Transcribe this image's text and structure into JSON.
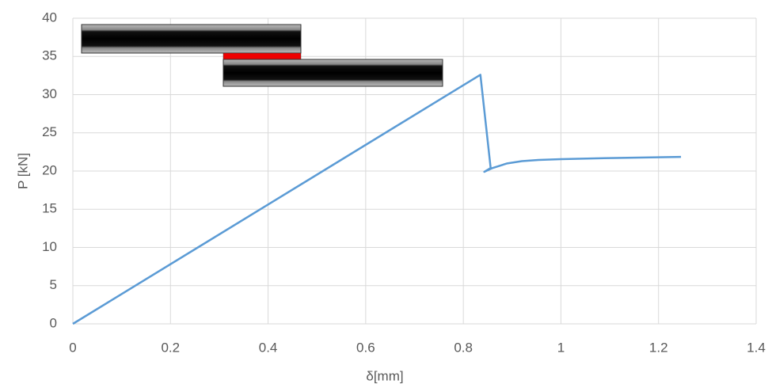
{
  "chart_data": {
    "type": "line",
    "x_label": "δ[mm]",
    "y_label": "P [kN]",
    "x": [
      0,
      0.835,
      0.856,
      0.843,
      0.86,
      0.89,
      0.92,
      0.954,
      1.0,
      1.1,
      1.246
    ],
    "values": [
      0,
      32.6,
      20.4,
      19.9,
      20.4,
      21.0,
      21.3,
      21.45,
      21.55,
      21.7,
      21.85
    ],
    "color": "#5b9bd5",
    "xlim": [
      0,
      1.4
    ],
    "xticks": [
      0,
      0.2,
      0.4,
      0.6,
      0.8,
      1,
      1.2,
      1.4
    ],
    "ylim": [
      0,
      40
    ],
    "yticks": [
      0,
      5,
      10,
      15,
      20,
      25,
      30,
      35,
      40
    ],
    "grid": true
  }
}
